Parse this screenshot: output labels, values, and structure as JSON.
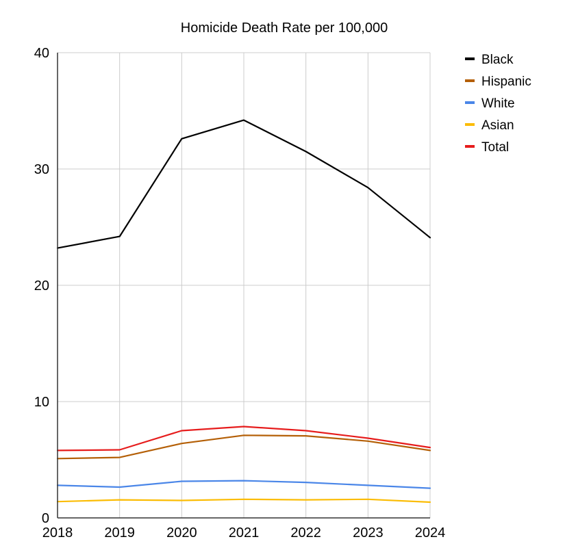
{
  "chart_data": {
    "type": "line",
    "title": "Homicide Death Rate per 100,000",
    "xlabel": "",
    "ylabel": "",
    "categories": [
      "2018",
      "2019",
      "2020",
      "2021",
      "2022",
      "2023",
      "2024"
    ],
    "ylim": [
      0,
      40
    ],
    "yticks": [
      "0",
      "10",
      "20",
      "30",
      "40"
    ],
    "grid": true,
    "legend_position": "right",
    "series": [
      {
        "name": "Black",
        "color": "#000000",
        "values": [
          23.2,
          24.2,
          32.6,
          34.2,
          31.5,
          28.4,
          24.1
        ]
      },
      {
        "name": "Hispanic",
        "color": "#b45f06",
        "values": [
          5.1,
          5.2,
          6.4,
          7.1,
          7.05,
          6.6,
          5.8
        ]
      },
      {
        "name": "White",
        "color": "#4a86e8",
        "values": [
          2.8,
          2.65,
          3.15,
          3.2,
          3.05,
          2.8,
          2.55
        ]
      },
      {
        "name": "Asian",
        "color": "#fbbc04",
        "values": [
          1.4,
          1.55,
          1.5,
          1.6,
          1.55,
          1.6,
          1.35
        ]
      },
      {
        "name": "Total",
        "color": "#e61c1c",
        "values": [
          5.8,
          5.85,
          7.5,
          7.85,
          7.5,
          6.85,
          6.05
        ]
      }
    ]
  }
}
